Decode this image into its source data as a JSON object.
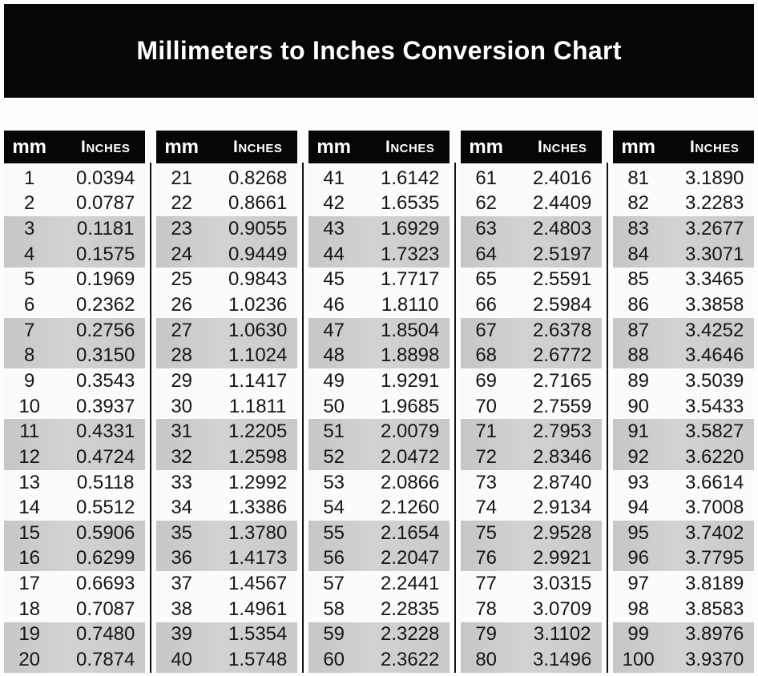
{
  "title": "Millimeters to Inches Conversion Chart",
  "colors": {
    "page_bg": "#fdfdfd",
    "banner_bg": "#060606",
    "header_bg": "#060606",
    "header_text": "#ffffff",
    "row_bg": "#fbfbfb",
    "stripe": "#c9c9c9",
    "text": "#161616",
    "divider": "#131313"
  },
  "table": {
    "headers": {
      "mm": "mm",
      "inches": "Inches"
    },
    "stripe_pattern": "alternating-row-pairs",
    "groups": [
      {
        "rows": [
          {
            "mm": "1",
            "inches": "0.0394"
          },
          {
            "mm": "2",
            "inches": "0.0787"
          },
          {
            "mm": "3",
            "inches": "0.1181"
          },
          {
            "mm": "4",
            "inches": "0.1575"
          },
          {
            "mm": "5",
            "inches": "0.1969"
          },
          {
            "mm": "6",
            "inches": "0.2362"
          },
          {
            "mm": "7",
            "inches": "0.2756"
          },
          {
            "mm": "8",
            "inches": "0.3150"
          },
          {
            "mm": "9",
            "inches": "0.3543"
          },
          {
            "mm": "10",
            "inches": "0.3937"
          },
          {
            "mm": "11",
            "inches": "0.4331"
          },
          {
            "mm": "12",
            "inches": "0.4724"
          },
          {
            "mm": "13",
            "inches": "0.5118"
          },
          {
            "mm": "14",
            "inches": "0.5512"
          },
          {
            "mm": "15",
            "inches": "0.5906"
          },
          {
            "mm": "16",
            "inches": "0.6299"
          },
          {
            "mm": "17",
            "inches": "0.6693"
          },
          {
            "mm": "18",
            "inches": "0.7087"
          },
          {
            "mm": "19",
            "inches": "0.7480"
          },
          {
            "mm": "20",
            "inches": "0.7874"
          }
        ]
      },
      {
        "rows": [
          {
            "mm": "21",
            "inches": "0.8268"
          },
          {
            "mm": "22",
            "inches": "0.8661"
          },
          {
            "mm": "23",
            "inches": "0.9055"
          },
          {
            "mm": "24",
            "inches": "0.9449"
          },
          {
            "mm": "25",
            "inches": "0.9843"
          },
          {
            "mm": "26",
            "inches": "1.0236"
          },
          {
            "mm": "27",
            "inches": "1.0630"
          },
          {
            "mm": "28",
            "inches": "1.1024"
          },
          {
            "mm": "29",
            "inches": "1.1417"
          },
          {
            "mm": "30",
            "inches": "1.1811"
          },
          {
            "mm": "31",
            "inches": "1.2205"
          },
          {
            "mm": "32",
            "inches": "1.2598"
          },
          {
            "mm": "33",
            "inches": "1.2992"
          },
          {
            "mm": "34",
            "inches": "1.3386"
          },
          {
            "mm": "35",
            "inches": "1.3780"
          },
          {
            "mm": "36",
            "inches": "1.4173"
          },
          {
            "mm": "37",
            "inches": "1.4567"
          },
          {
            "mm": "38",
            "inches": "1.4961"
          },
          {
            "mm": "39",
            "inches": "1.5354"
          },
          {
            "mm": "40",
            "inches": "1.5748"
          }
        ]
      },
      {
        "rows": [
          {
            "mm": "41",
            "inches": "1.6142"
          },
          {
            "mm": "42",
            "inches": "1.6535"
          },
          {
            "mm": "43",
            "inches": "1.6929"
          },
          {
            "mm": "44",
            "inches": "1.7323"
          },
          {
            "mm": "45",
            "inches": "1.7717"
          },
          {
            "mm": "46",
            "inches": "1.8110"
          },
          {
            "mm": "47",
            "inches": "1.8504"
          },
          {
            "mm": "48",
            "inches": "1.8898"
          },
          {
            "mm": "49",
            "inches": "1.9291"
          },
          {
            "mm": "50",
            "inches": "1.9685"
          },
          {
            "mm": "51",
            "inches": "2.0079"
          },
          {
            "mm": "52",
            "inches": "2.0472"
          },
          {
            "mm": "53",
            "inches": "2.0866"
          },
          {
            "mm": "54",
            "inches": "2.1260"
          },
          {
            "mm": "55",
            "inches": "2.1654"
          },
          {
            "mm": "56",
            "inches": "2.2047"
          },
          {
            "mm": "57",
            "inches": "2.2441"
          },
          {
            "mm": "58",
            "inches": "2.2835"
          },
          {
            "mm": "59",
            "inches": "2.3228"
          },
          {
            "mm": "60",
            "inches": "2.3622"
          }
        ]
      },
      {
        "rows": [
          {
            "mm": "61",
            "inches": "2.4016"
          },
          {
            "mm": "62",
            "inches": "2.4409"
          },
          {
            "mm": "63",
            "inches": "2.4803"
          },
          {
            "mm": "64",
            "inches": "2.5197"
          },
          {
            "mm": "65",
            "inches": "2.5591"
          },
          {
            "mm": "66",
            "inches": "2.5984"
          },
          {
            "mm": "67",
            "inches": "2.6378"
          },
          {
            "mm": "68",
            "inches": "2.6772"
          },
          {
            "mm": "69",
            "inches": "2.7165"
          },
          {
            "mm": "70",
            "inches": "2.7559"
          },
          {
            "mm": "71",
            "inches": "2.7953"
          },
          {
            "mm": "72",
            "inches": "2.8346"
          },
          {
            "mm": "73",
            "inches": "2.8740"
          },
          {
            "mm": "74",
            "inches": "2.9134"
          },
          {
            "mm": "75",
            "inches": "2.9528"
          },
          {
            "mm": "76",
            "inches": "2.9921"
          },
          {
            "mm": "77",
            "inches": "3.0315"
          },
          {
            "mm": "78",
            "inches": "3.0709"
          },
          {
            "mm": "79",
            "inches": "3.1102"
          },
          {
            "mm": "80",
            "inches": "3.1496"
          }
        ]
      },
      {
        "rows": [
          {
            "mm": "81",
            "inches": "3.1890"
          },
          {
            "mm": "82",
            "inches": "3.2283"
          },
          {
            "mm": "83",
            "inches": "3.2677"
          },
          {
            "mm": "84",
            "inches": "3.3071"
          },
          {
            "mm": "85",
            "inches": "3.3465"
          },
          {
            "mm": "86",
            "inches": "3.3858"
          },
          {
            "mm": "87",
            "inches": "3.4252"
          },
          {
            "mm": "88",
            "inches": "3.4646"
          },
          {
            "mm": "89",
            "inches": "3.5039"
          },
          {
            "mm": "90",
            "inches": "3.5433"
          },
          {
            "mm": "91",
            "inches": "3.5827"
          },
          {
            "mm": "92",
            "inches": "3.6220"
          },
          {
            "mm": "93",
            "inches": "3.6614"
          },
          {
            "mm": "94",
            "inches": "3.7008"
          },
          {
            "mm": "95",
            "inches": "3.7402"
          },
          {
            "mm": "96",
            "inches": "3.7795"
          },
          {
            "mm": "97",
            "inches": "3.8189"
          },
          {
            "mm": "98",
            "inches": "3.8583"
          },
          {
            "mm": "99",
            "inches": "3.8976"
          },
          {
            "mm": "100",
            "inches": "3.9370"
          }
        ]
      }
    ]
  }
}
